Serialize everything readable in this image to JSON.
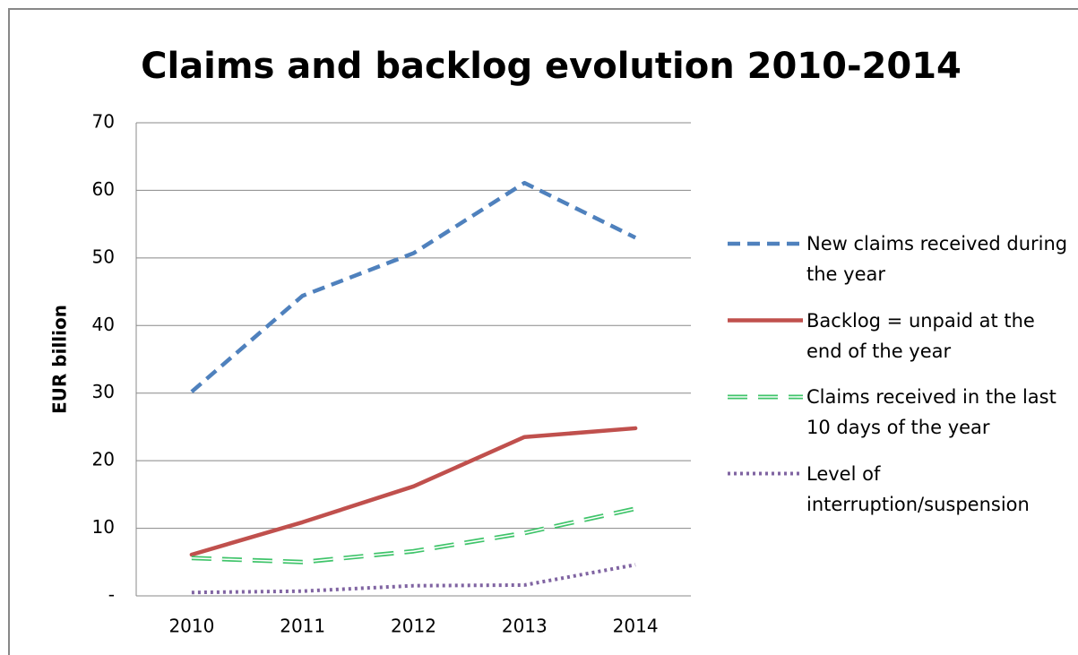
{
  "chart_data": {
    "type": "line",
    "title": "Claims and backlog evolution 2010-2014",
    "y_label": "EUR billion",
    "categories": [
      "2010",
      "2011",
      "2012",
      "2013",
      "2014"
    ],
    "series": [
      {
        "name": "New claims received during the year",
        "color": "#4f81bd",
        "style": "dashed",
        "values": [
          30.2,
          44.4,
          50.7,
          61.1,
          53.0
        ]
      },
      {
        "name": "Backlog = unpaid at the end of the year",
        "color": "#c0504d",
        "style": "solid",
        "values": [
          6.1,
          10.9,
          16.2,
          23.5,
          24.8
        ]
      },
      {
        "name": "Claims received in the last 10 days of the year",
        "color": "#3fc46a",
        "style": "double-dashed",
        "values": [
          5.6,
          5.0,
          6.6,
          9.3,
          12.9
        ]
      },
      {
        "name": "Level of interruption/suspension",
        "color": "#8064a2",
        "style": "dotted",
        "values": [
          0.5,
          0.7,
          1.5,
          1.6,
          4.6
        ]
      }
    ],
    "ylim": [
      0,
      70
    ],
    "yticks": [
      {
        "value": 0,
        "label": "-"
      },
      10,
      20,
      30,
      40,
      50,
      60,
      70
    ],
    "grid": true,
    "legend": "right"
  }
}
